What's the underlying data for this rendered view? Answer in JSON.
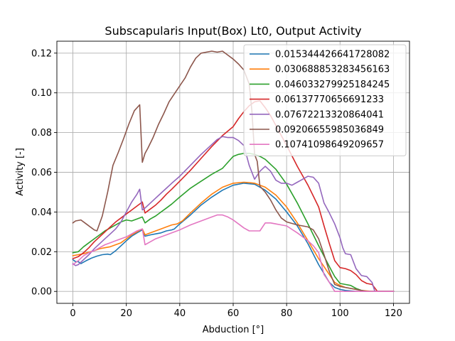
{
  "chart_data": {
    "type": "line",
    "title": "Subscapularis Input(Box) Lt0, Output Activity",
    "xlabel": "Abduction [°]",
    "ylabel": "Activity [-]",
    "xlim": [
      -6,
      126
    ],
    "ylim": [
      -0.006,
      0.126
    ],
    "xticks": [
      0,
      20,
      40,
      60,
      80,
      100,
      120
    ],
    "yticks": [
      0.0,
      0.02,
      0.04,
      0.06,
      0.08,
      0.1,
      0.12
    ],
    "xtick_labels": [
      "0",
      "20",
      "40",
      "60",
      "80",
      "100",
      "120"
    ],
    "ytick_labels": [
      "0.00",
      "0.02",
      "0.04",
      "0.06",
      "0.08",
      "0.10",
      "0.12"
    ],
    "grid": true,
    "legend_position": "upper right",
    "series": [
      {
        "name": "0.015344426641728082",
        "color": "#1f77b4",
        "x": [
          0,
          1,
          2,
          3,
          5,
          7,
          9,
          11,
          13,
          14,
          16,
          18,
          20,
          22,
          24,
          26,
          27,
          29,
          31,
          33,
          35,
          37,
          38,
          40,
          44,
          48,
          52,
          56,
          60,
          64,
          68,
          72,
          76,
          80,
          84,
          88,
          92,
          96,
          98,
          100,
          102,
          106,
          110,
          114,
          120
        ],
        "y": [
          0.016,
          0.015,
          0.015,
          0.014,
          0.0155,
          0.0168,
          0.0178,
          0.0185,
          0.0188,
          0.0185,
          0.0205,
          0.023,
          0.0255,
          0.0278,
          0.0295,
          0.031,
          0.0278,
          0.0285,
          0.029,
          0.0295,
          0.0305,
          0.031,
          0.0315,
          0.034,
          0.0385,
          0.0435,
          0.0475,
          0.051,
          0.0535,
          0.0545,
          0.054,
          0.051,
          0.0465,
          0.04,
          0.033,
          0.024,
          0.0135,
          0.0045,
          0.002,
          0.001,
          0.0005,
          0.0,
          0.0,
          0.0,
          0.0
        ]
      },
      {
        "name": "0.030688853283456163",
        "color": "#ff7f0e",
        "x": [
          0,
          2,
          4,
          6,
          8,
          10,
          12,
          14,
          16,
          18,
          20,
          22,
          24,
          26,
          27,
          29,
          31,
          33,
          35,
          37,
          39,
          41,
          44,
          48,
          52,
          56,
          60,
          64,
          66,
          68,
          72,
          76,
          80,
          84,
          88,
          92,
          96,
          98,
          100,
          102,
          104,
          108,
          112,
          120
        ],
        "y": [
          0.018,
          0.0185,
          0.019,
          0.0198,
          0.0205,
          0.0215,
          0.022,
          0.0225,
          0.0235,
          0.0245,
          0.0265,
          0.0285,
          0.03,
          0.0315,
          0.0285,
          0.0295,
          0.0305,
          0.0315,
          0.0325,
          0.0335,
          0.034,
          0.0355,
          0.0395,
          0.0445,
          0.049,
          0.0525,
          0.0545,
          0.055,
          0.0548,
          0.0545,
          0.0525,
          0.0485,
          0.0425,
          0.0345,
          0.0255,
          0.0165,
          0.0085,
          0.0045,
          0.003,
          0.002,
          0.0015,
          0.0005,
          0.0,
          0.0
        ]
      },
      {
        "name": "0.046033279925184245",
        "color": "#2ca02c",
        "x": [
          0,
          2,
          4,
          6,
          8,
          10,
          12,
          14,
          16,
          18,
          20,
          22,
          24,
          26,
          27,
          29,
          31,
          33,
          35,
          37,
          40,
          44,
          48,
          52,
          56,
          60,
          62,
          64,
          66,
          68,
          70,
          72,
          76,
          80,
          84,
          88,
          92,
          96,
          98,
          100,
          102,
          104,
          106,
          108,
          110,
          112,
          120
        ],
        "y": [
          0.0195,
          0.02,
          0.0225,
          0.0245,
          0.0265,
          0.0285,
          0.0305,
          0.032,
          0.0335,
          0.035,
          0.036,
          0.0355,
          0.0365,
          0.0375,
          0.0345,
          0.0365,
          0.038,
          0.04,
          0.042,
          0.044,
          0.0475,
          0.052,
          0.0555,
          0.059,
          0.062,
          0.068,
          0.069,
          0.0695,
          0.0695,
          0.069,
          0.068,
          0.0665,
          0.0615,
          0.054,
          0.0445,
          0.034,
          0.023,
          0.0125,
          0.0075,
          0.004,
          0.0035,
          0.003,
          0.0015,
          0.0005,
          0.0,
          0.0,
          0.0
        ]
      },
      {
        "name": "0.06137770656691233",
        "color": "#d62728",
        "x": [
          0,
          2,
          4,
          6,
          8,
          10,
          12,
          14,
          16,
          18,
          20,
          22,
          24,
          26,
          27,
          29,
          31,
          33,
          35,
          37,
          40,
          44,
          48,
          52,
          56,
          60,
          62,
          64,
          66,
          68,
          70,
          72,
          74,
          76,
          80,
          84,
          88,
          90,
          92,
          94,
          96,
          98,
          100,
          102,
          104,
          106,
          108,
          110,
          112,
          114,
          120
        ],
        "y": [
          0.0165,
          0.0175,
          0.0195,
          0.022,
          0.025,
          0.0275,
          0.03,
          0.0325,
          0.035,
          0.037,
          0.039,
          0.041,
          0.043,
          0.045,
          0.0395,
          0.0415,
          0.0435,
          0.046,
          0.049,
          0.0515,
          0.0555,
          0.061,
          0.067,
          0.073,
          0.0785,
          0.083,
          0.087,
          0.0905,
          0.0935,
          0.0955,
          0.096,
          0.0925,
          0.0885,
          0.0835,
          0.0735,
          0.063,
          0.0535,
          0.048,
          0.0425,
          0.033,
          0.024,
          0.0155,
          0.012,
          0.0115,
          0.0105,
          0.0085,
          0.0055,
          0.004,
          0.0035,
          0.0,
          0.0
        ]
      },
      {
        "name": "0.07672213320864041",
        "color": "#9467bd",
        "x": [
          0,
          1,
          2,
          4,
          6,
          8,
          10,
          12,
          14,
          16,
          18,
          20,
          22,
          24,
          25,
          26,
          27,
          29,
          31,
          33,
          35,
          37,
          40,
          44,
          48,
          52,
          54,
          56,
          58,
          60,
          62,
          64,
          66,
          68,
          70,
          72,
          74,
          76,
          78,
          80,
          82,
          84,
          86,
          88,
          90,
          92,
          94,
          96,
          98,
          100,
          101,
          102,
          104,
          106,
          108,
          110,
          112,
          113,
          120
        ],
        "y": [
          0.014,
          0.013,
          0.0135,
          0.016,
          0.0185,
          0.0215,
          0.024,
          0.0265,
          0.029,
          0.0315,
          0.035,
          0.04,
          0.045,
          0.049,
          0.0515,
          0.041,
          0.042,
          0.0445,
          0.047,
          0.0495,
          0.052,
          0.0545,
          0.058,
          0.0635,
          0.069,
          0.074,
          0.0765,
          0.078,
          0.0775,
          0.0775,
          0.076,
          0.0735,
          0.0635,
          0.0565,
          0.0605,
          0.063,
          0.0605,
          0.056,
          0.0545,
          0.0545,
          0.0535,
          0.055,
          0.0565,
          0.058,
          0.0575,
          0.0545,
          0.0445,
          0.0395,
          0.034,
          0.027,
          0.022,
          0.019,
          0.0185,
          0.0115,
          0.008,
          0.0075,
          0.0045,
          0.0,
          0.0
        ]
      },
      {
        "name": "0.09206655985036849",
        "color": "#8c564b",
        "x": [
          0,
          1,
          3,
          5,
          7,
          8,
          9,
          11,
          13,
          15,
          17,
          19,
          21,
          23,
          25,
          26,
          27,
          28,
          30,
          32,
          34,
          36,
          38,
          40,
          42,
          44,
          46,
          48,
          50,
          52,
          54,
          56,
          58,
          60,
          62,
          64,
          66,
          67,
          68,
          69,
          70,
          72,
          74,
          76,
          78,
          80,
          84,
          88,
          90,
          92,
          94,
          96,
          98,
          100,
          102,
          104,
          106,
          108,
          110,
          112,
          114,
          120
        ],
        "y": [
          0.0345,
          0.0355,
          0.036,
          0.034,
          0.032,
          0.031,
          0.0305,
          0.038,
          0.05,
          0.0635,
          0.07,
          0.077,
          0.0845,
          0.091,
          0.094,
          0.065,
          0.0695,
          0.072,
          0.0775,
          0.084,
          0.0895,
          0.0955,
          0.0995,
          0.1035,
          0.1075,
          0.113,
          0.1175,
          0.12,
          0.1205,
          0.121,
          0.1205,
          0.121,
          0.119,
          0.117,
          0.1145,
          0.1115,
          0.1045,
          0.091,
          0.069,
          0.0655,
          0.053,
          0.05,
          0.046,
          0.041,
          0.037,
          0.035,
          0.0335,
          0.0325,
          0.031,
          0.0265,
          0.0185,
          0.01,
          0.0035,
          0.0025,
          0.002,
          0.0015,
          0.001,
          0.0005,
          0.0,
          0.0,
          0.0,
          0.0
        ]
      },
      {
        "name": "0.10741098649209657",
        "color": "#e377c2",
        "x": [
          0,
          2,
          4,
          6,
          8,
          10,
          12,
          14,
          16,
          18,
          20,
          22,
          24,
          26,
          27,
          29,
          31,
          33,
          35,
          37,
          40,
          44,
          48,
          52,
          54,
          56,
          58,
          60,
          62,
          64,
          66,
          68,
          70,
          72,
          74,
          76,
          78,
          80,
          84,
          88,
          90,
          92,
          94,
          96,
          98,
          100,
          102,
          106,
          110,
          114,
          120
        ],
        "y": [
          0.0135,
          0.0155,
          0.018,
          0.0195,
          0.0205,
          0.022,
          0.0235,
          0.0245,
          0.0255,
          0.0265,
          0.0275,
          0.029,
          0.0305,
          0.0315,
          0.0235,
          0.025,
          0.0265,
          0.0275,
          0.0285,
          0.0295,
          0.031,
          0.0335,
          0.0355,
          0.0375,
          0.0385,
          0.0385,
          0.0375,
          0.036,
          0.034,
          0.032,
          0.0305,
          0.0305,
          0.0305,
          0.0345,
          0.0345,
          0.034,
          0.0335,
          0.033,
          0.0295,
          0.0255,
          0.023,
          0.0195,
          0.0085,
          0.0045,
          0.0,
          0.0,
          0.0,
          0.0,
          0.0,
          0.0,
          0.0
        ]
      }
    ]
  }
}
